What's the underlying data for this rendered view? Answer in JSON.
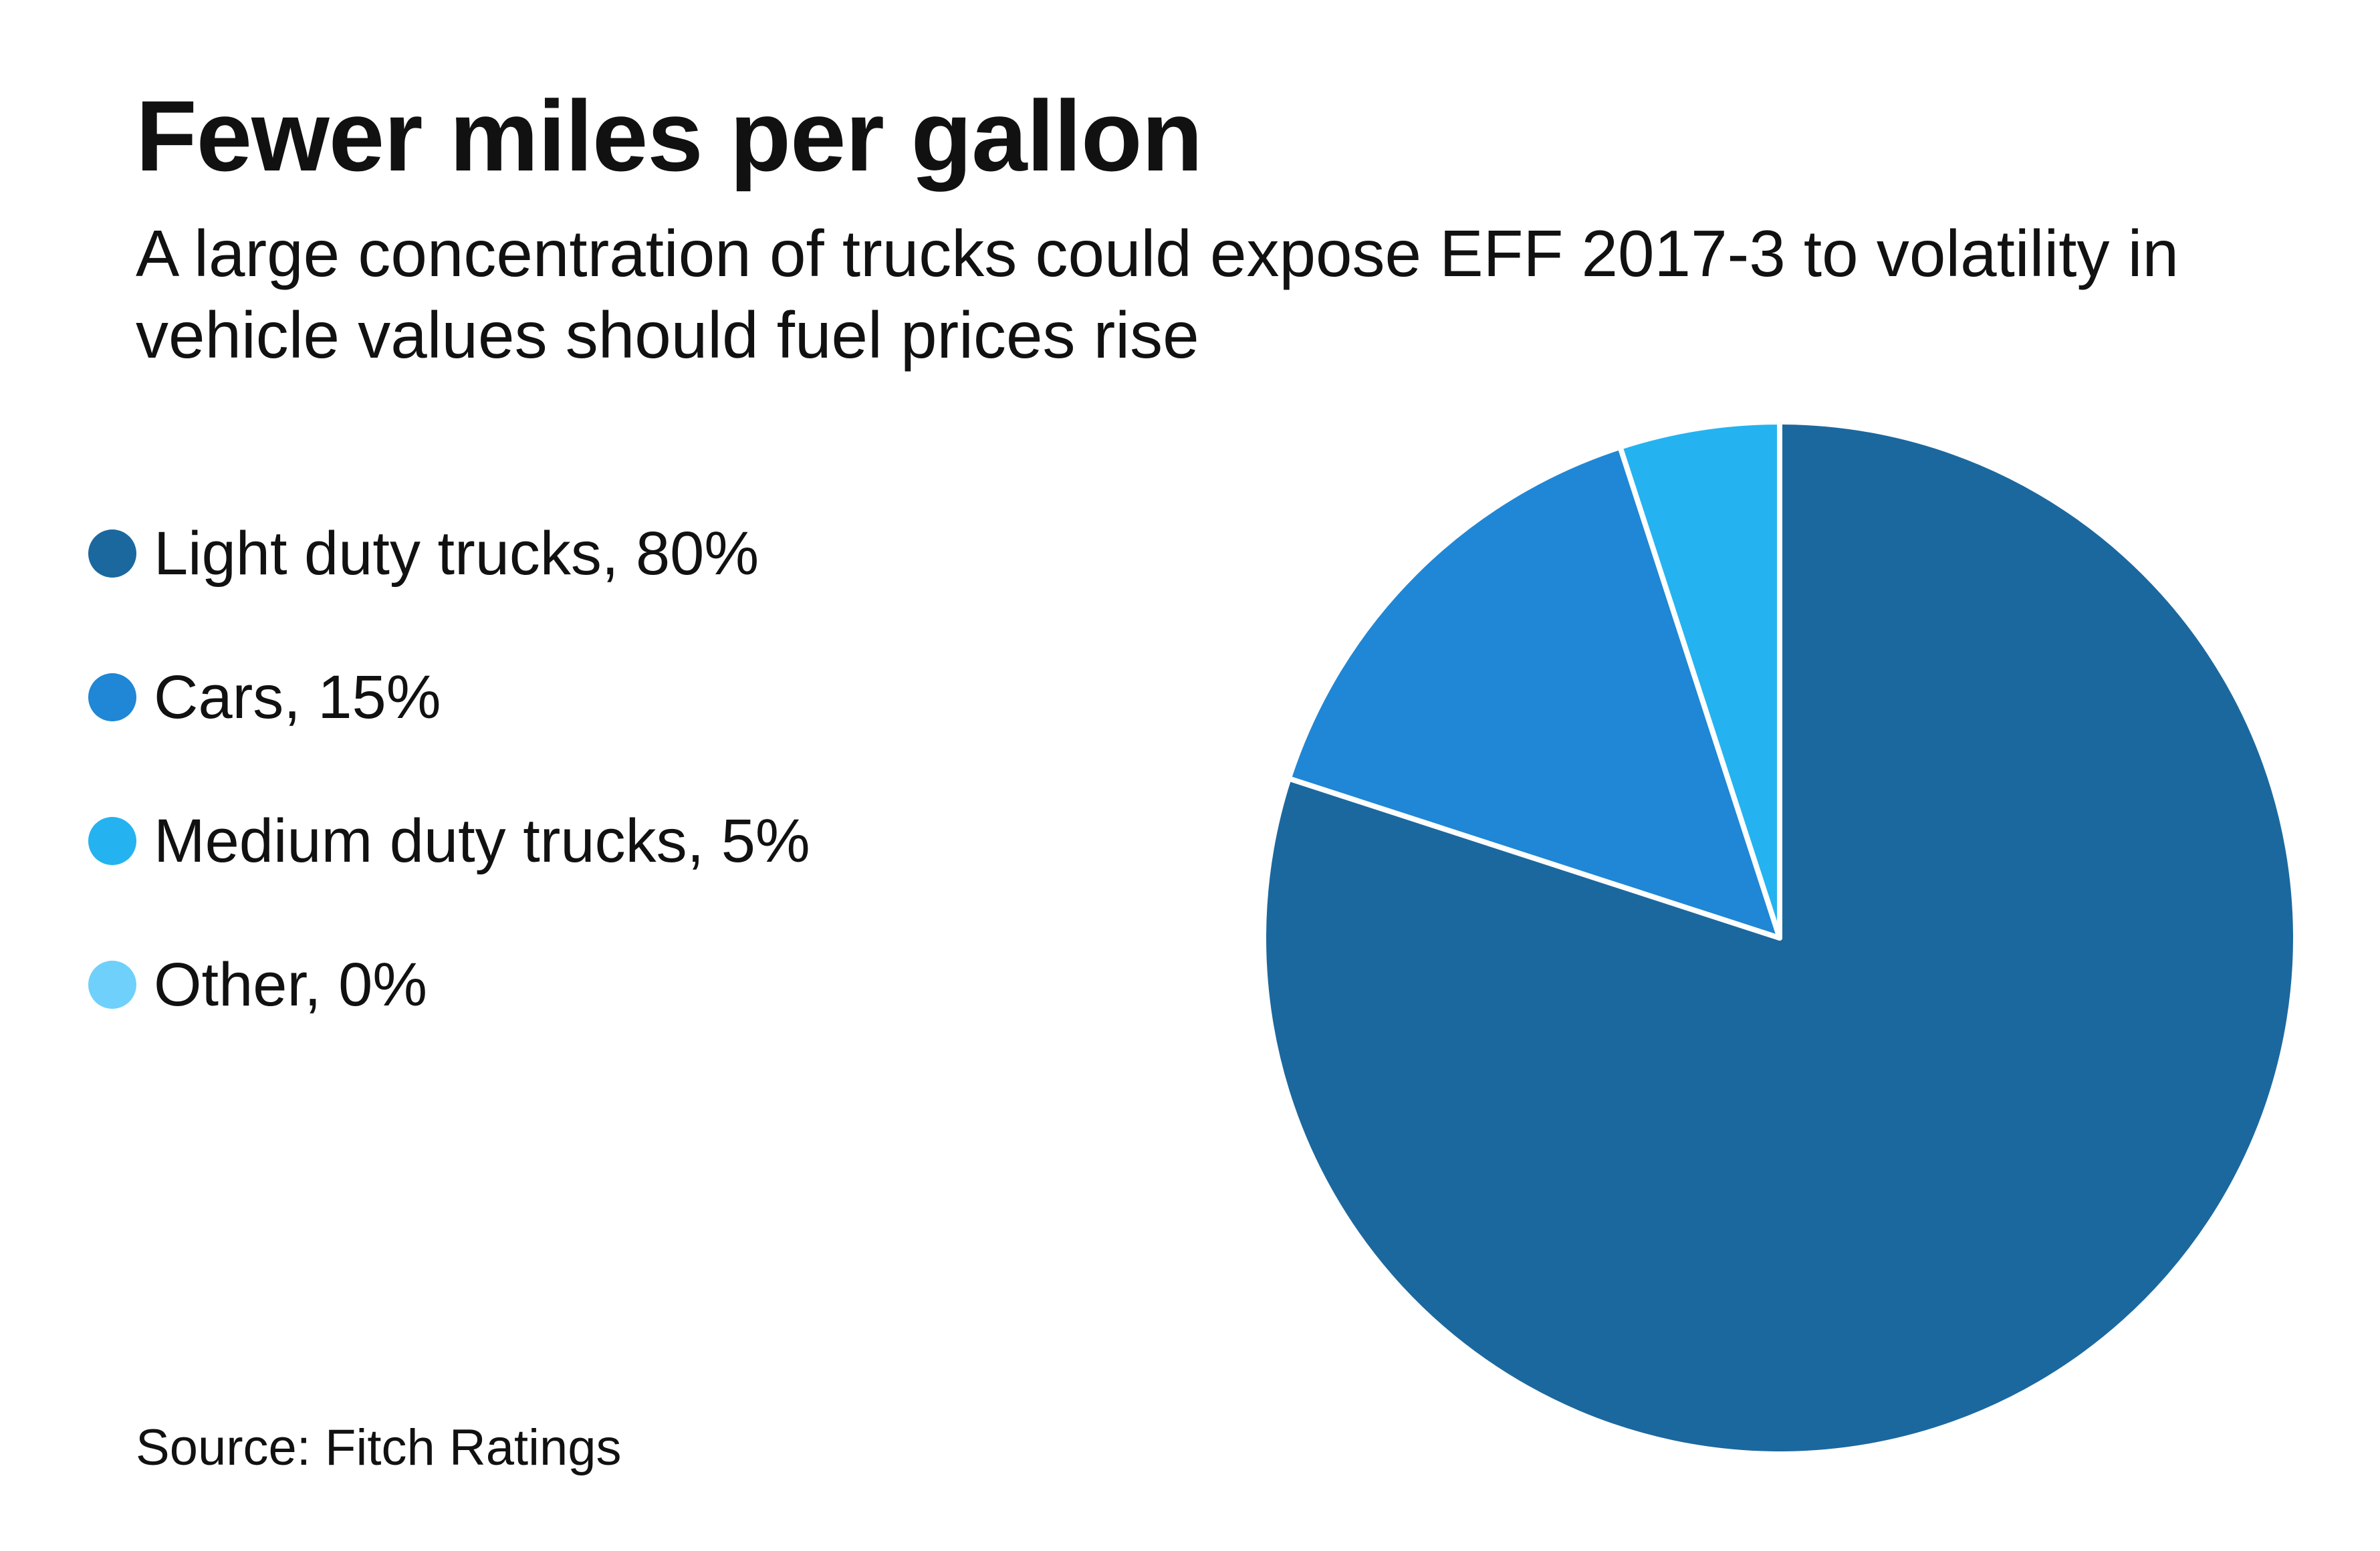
{
  "title": "Fewer miles per gallon",
  "subtitle": "A large concentration of trucks could expose EFF 2017-3 to volatility in vehicle values should fuel prices rise",
  "source": "Source: Fitch Ratings",
  "legend": [
    {
      "label": "Light duty trucks, 80%",
      "color": "#1b689f"
    },
    {
      "label": "Cars, 15%",
      "color": "#1f87d5"
    },
    {
      "label": "Medium duty trucks, 5%",
      "color": "#24b3f0"
    },
    {
      "label": "Other, 0%",
      "color": "#6fd1fb"
    }
  ],
  "chart_data": {
    "type": "pie",
    "title": "Fewer miles per gallon",
    "categories": [
      "Light duty trucks",
      "Cars",
      "Medium duty trucks",
      "Other"
    ],
    "values": [
      80,
      15,
      5,
      0
    ],
    "unit": "%",
    "colors": [
      "#1b689f",
      "#1f87d5",
      "#24b3f0",
      "#6fd1fb"
    ],
    "start_angle": "12 o'clock",
    "direction": "clockwise",
    "slice_border_color": "#ffffff"
  }
}
